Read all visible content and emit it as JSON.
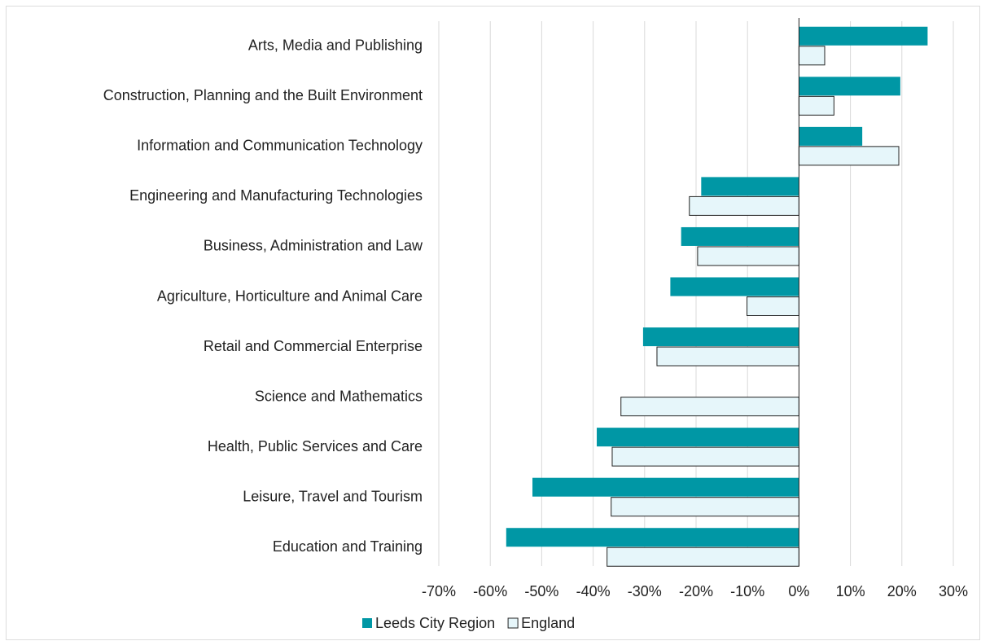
{
  "chart_data": {
    "type": "bar",
    "categories": [
      "Arts, Media and Publishing",
      "Construction, Planning and the Built Environment",
      "Information and Communication Technology",
      "Engineering and Manufacturing Technologies",
      "Business, Administration and Law",
      "Agriculture, Horticulture and Animal Care",
      "Retail and Commercial Enterprise",
      "Science and Mathematics",
      "Health, Public Services and Care",
      "Leisure, Travel and Tourism",
      "Education and Training"
    ],
    "series": [
      {
        "name": "Leeds City Region",
        "color": "#0097a5",
        "values": [
          25,
          19.7,
          12.3,
          -19,
          -22.9,
          -25,
          -30.3,
          null,
          -39.3,
          -51.8,
          -56.9
        ]
      },
      {
        "name": "England",
        "color": "#e6f6fa",
        "values": [
          5,
          6.8,
          19.4,
          -21.3,
          -19.7,
          -10.1,
          -27.6,
          -34.6,
          -36.3,
          -36.5,
          -37.3
        ]
      }
    ],
    "xlim": [
      -70,
      30
    ],
    "xticks": [
      {
        "value": -70,
        "label": "-70%"
      },
      {
        "value": -60,
        "label": "-60%"
      },
      {
        "value": -50,
        "label": "-50%"
      },
      {
        "value": -40,
        "label": "-40%"
      },
      {
        "value": -30,
        "label": "-30%"
      },
      {
        "value": -20,
        "label": "-20%"
      },
      {
        "value": -10,
        "label": "-10%"
      },
      {
        "value": 0,
        "label": "0%"
      },
      {
        "value": 10,
        "label": "10%"
      },
      {
        "value": 20,
        "label": "20%"
      },
      {
        "value": 30,
        "label": "30%"
      }
    ],
    "grid": true,
    "legend": "bottom"
  }
}
